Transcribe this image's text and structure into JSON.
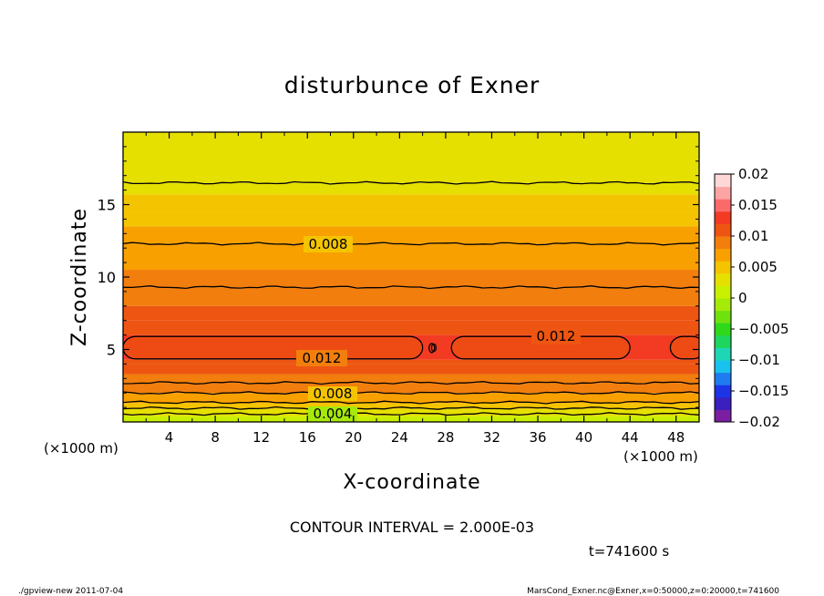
{
  "chart_data": {
    "type": "heatmap",
    "title": "disturbunce of Exner",
    "xlabel": "X-coordinate",
    "ylabel": "Z-coordinate",
    "x_unit": "(×1000 m)",
    "y_unit": "(×1000 m)",
    "xlim": [
      0,
      50
    ],
    "ylim": [
      0,
      20
    ],
    "x_ticks": [
      4,
      8,
      12,
      16,
      20,
      24,
      28,
      32,
      36,
      40,
      44,
      48
    ],
    "y_ticks": [
      5,
      10,
      15
    ],
    "colorbar": {
      "levels": [
        -0.02,
        -0.015,
        -0.01,
        -0.005,
        0,
        0.005,
        0.01,
        0.015,
        0.02
      ],
      "labels": [
        "0.02",
        "0.015",
        "0.01",
        "0.005",
        "0",
        "−0.005",
        "−0.01",
        "−0.015",
        "−0.02"
      ],
      "colors": [
        "#7a1fa2",
        "#3b1fbf",
        "#1c34e6",
        "#1f7cf0",
        "#19c2ee",
        "#1fd6b4",
        "#1ed65e",
        "#2fd81a",
        "#6fe10f",
        "#a6ea0a",
        "#c9f000",
        "#e6e000",
        "#f5c400",
        "#f8a000",
        "#f27e0d",
        "#ee5512",
        "#f23b22",
        "#fb6a6a",
        "#fca3a3",
        "#ffd7d7"
      ]
    },
    "contour_interval": "2.000E-03",
    "contour_labels": [
      "0.008",
      "0.012",
      "0.012",
      "0.008",
      "0.004",
      "0"
    ],
    "bands": [
      {
        "z_top": 0.4,
        "value": 0.0015
      },
      {
        "z_top": 0.9,
        "value": 0.003
      },
      {
        "z_top": 1.3,
        "value": 0.005
      },
      {
        "z_top": 2.0,
        "value": 0.007
      },
      {
        "z_top": 2.7,
        "value": 0.0085
      },
      {
        "z_top": 3.3,
        "value": 0.0095
      },
      {
        "z_top": 4.0,
        "value": 0.0105
      },
      {
        "z_top": 4.3,
        "value": 0.0115
      },
      {
        "z_top": 6.0,
        "value": 0.0125
      },
      {
        "z_top": 7.0,
        "value": 0.0115
      },
      {
        "z_top": 8.0,
        "value": 0.0105
      },
      {
        "z_top": 9.3,
        "value": 0.0095
      },
      {
        "z_top": 10.5,
        "value": 0.0085
      },
      {
        "z_top": 12.3,
        "value": 0.0075
      },
      {
        "z_top": 13.5,
        "value": 0.0065
      },
      {
        "z_top": 14.5,
        "value": 0.0055
      },
      {
        "z_top": 15.7,
        "value": 0.0045
      },
      {
        "z_top": 16.5,
        "value": 0.0035
      },
      {
        "z_top": 20.0,
        "value": 0.0025
      }
    ],
    "contours": [
      {
        "z": 0.55
      },
      {
        "z": 0.95
      },
      {
        "z": 1.35
      },
      {
        "z": 2.0
      },
      {
        "z": 2.7
      },
      {
        "z": 9.3
      },
      {
        "z": 12.3
      },
      {
        "z": 16.5
      }
    ]
  },
  "figure": {
    "interval_text": "CONTOUR INTERVAL = 2.000E-03",
    "time_text": "t=741600 s",
    "footer_left": "./gpview-new   2011-07-04",
    "footer_right": "MarsCond_Exner.nc@Exner,x=0:50000,z=0:20000,t=741600"
  }
}
